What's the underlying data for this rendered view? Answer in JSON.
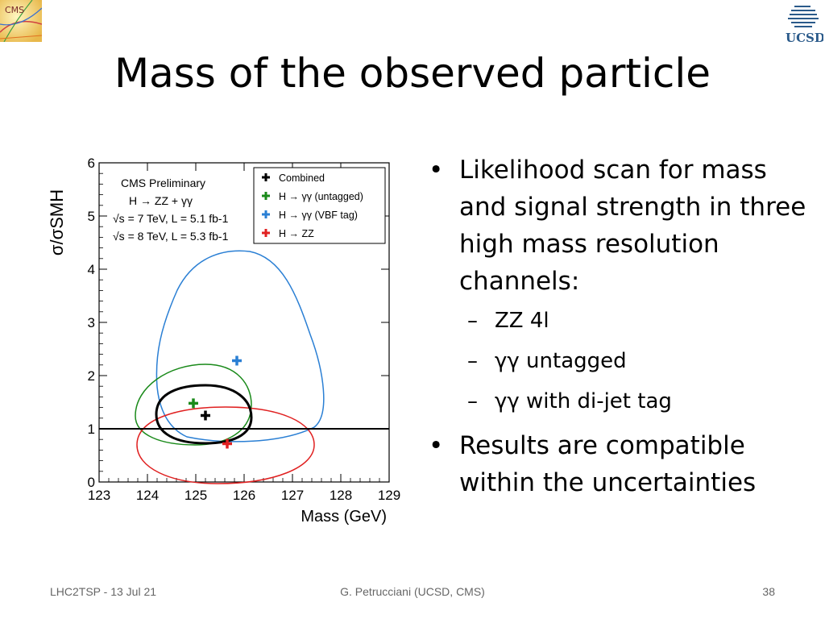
{
  "header": {
    "title": "Mass of the observed particle",
    "logo_left": "CMS",
    "logo_right": "UCSD"
  },
  "chart_data": {
    "type": "scatter",
    "xlabel": "Mass (GeV)",
    "ylabel": "σ/σSMH",
    "xlim": [
      123,
      129
    ],
    "ylim": [
      0,
      6
    ],
    "xticks": [
      "123",
      "124",
      "125",
      "126",
      "127",
      "128",
      "129"
    ],
    "yticks": [
      "0",
      "1",
      "2",
      "3",
      "4",
      "5",
      "6"
    ],
    "reference_line_y": 1,
    "annotation_lines": [
      "CMS Preliminary",
      "H → ZZ + γγ",
      "√s = 7 TeV, L = 5.1 fb-1",
      "√s = 8 TeV, L = 5.3 fb-1"
    ],
    "legend": [
      {
        "label": "Combined",
        "color": "#000000"
      },
      {
        "label": "H → γγ (untagged)",
        "color": "#1a8a1a"
      },
      {
        "label": "H → γγ (VBF tag)",
        "color": "#2a7fd4"
      },
      {
        "label": "H → ZZ",
        "color": "#e02020"
      }
    ],
    "series": [
      {
        "name": "Combined",
        "color": "#000000",
        "x": 125.2,
        "y": 1.25
      },
      {
        "name": "H → γγ (untagged)",
        "color": "#1a8a1a",
        "x": 124.95,
        "y": 1.48
      },
      {
        "name": "H → γγ (VBF tag)",
        "color": "#2a7fd4",
        "x": 125.85,
        "y": 2.28
      },
      {
        "name": "H → ZZ",
        "color": "#e02020",
        "x": 125.65,
        "y": 0.72
      }
    ]
  },
  "bullets": [
    {
      "text": "Likelihood scan for mass and signal strength in three high mass resolution channels:",
      "sub": [
        "ZZ 4l",
        "γγ untagged",
        "γγ with di-jet tag"
      ]
    },
    {
      "text": "Results are compatible within the uncertainties",
      "sub": []
    }
  ],
  "footer": {
    "left": "LHC2TSP - 13 Jul 21",
    "center": "G. Petrucciani (UCSD, CMS)",
    "page": "38"
  }
}
